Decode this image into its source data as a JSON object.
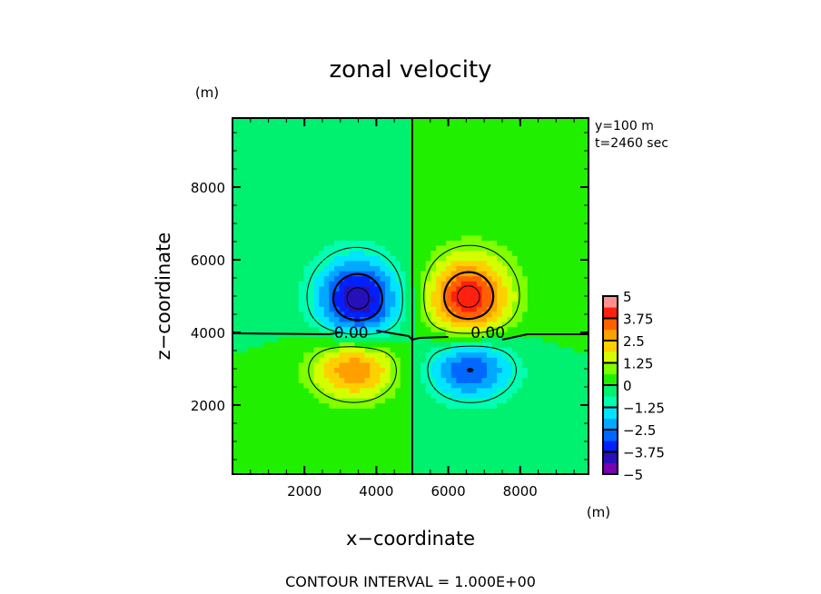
{
  "chart_data": {
    "type": "heatmap",
    "subtype": "filled-contour",
    "title": "zonal velocity",
    "xlabel": "x−coordinate",
    "ylabel": "z−coordinate",
    "x_unit": "(m)",
    "y_unit": "(m)",
    "xlim": [
      0,
      9900
    ],
    "ylim": [
      100,
      9900
    ],
    "x_ticks": [
      2000,
      4000,
      6000,
      8000
    ],
    "y_ticks": [
      2000,
      4000,
      6000,
      8000
    ],
    "x_tick_labels": [
      "2000",
      "4000",
      "6000",
      "8000"
    ],
    "y_tick_labels": [
      "2000",
      "4000",
      "6000",
      "8000"
    ],
    "info_lines": [
      "y=100 m",
      "t=2460 sec"
    ],
    "footer": "CONTOUR INTERVAL = 1.000E+00",
    "contour_labels": [
      {
        "text": "0.00",
        "x": 3300,
        "z": 4000
      },
      {
        "text": "0.00",
        "x": 7100,
        "z": 4000
      }
    ],
    "zero_lines": {
      "horizontal_z": 3950,
      "vertical_x": 5000
    },
    "extrema": [
      {
        "x": 3500,
        "z": 4900,
        "value": -4.2,
        "sigma_x": 800,
        "sigma_z": 800
      },
      {
        "x": 6550,
        "z": 4950,
        "value": 4.2,
        "sigma_x": 800,
        "sigma_z": 800
      },
      {
        "x": 3400,
        "z": 3050,
        "value": 3.2,
        "sigma_x": 850,
        "sigma_z": 620
      },
      {
        "x": 6600,
        "z": 3050,
        "value": -3.2,
        "sigma_x": 850,
        "sigma_z": 620
      }
    ],
    "contour_levels": [
      -4,
      -3,
      -1,
      0,
      1,
      3,
      4
    ],
    "colorbar": {
      "min": -5,
      "max": 5,
      "tick_labels": [
        "5",
        "3.75",
        "2.5",
        "1.25",
        "0",
        "−1.25",
        "−2.5",
        "−3.75",
        "−5"
      ],
      "colors": [
        "#7a00b0",
        "#2810b8",
        "#0020ff",
        "#0068ff",
        "#00a8ff",
        "#00e4ff",
        "#00ffb0",
        "#00f070",
        "#20f000",
        "#80ff00",
        "#d4ff00",
        "#ffd000",
        "#ffa000",
        "#ff6000",
        "#ff2010",
        "#ff9090"
      ]
    }
  }
}
